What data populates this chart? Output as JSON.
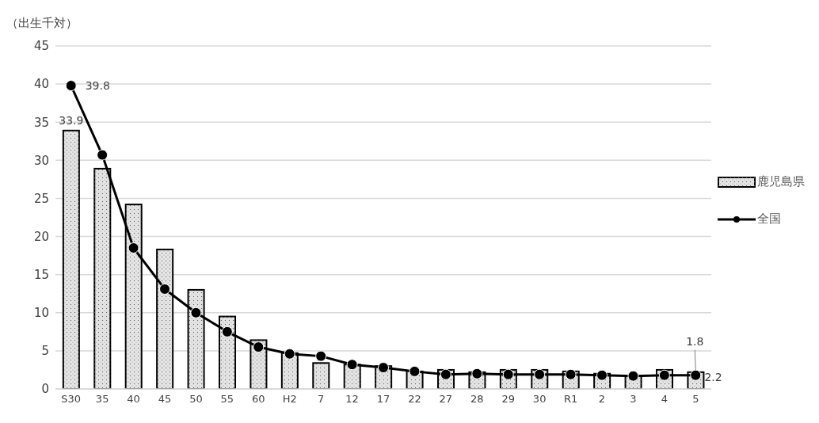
{
  "chart_data": {
    "type": "bar",
    "ylabel": "（出生千対）",
    "categories": [
      "S30",
      "35",
      "40",
      "45",
      "50",
      "55",
      "60",
      "H2",
      "7",
      "12",
      "17",
      "22",
      "27",
      "28",
      "29",
      "30",
      "R1",
      "2",
      "3",
      "4",
      "5"
    ],
    "series": [
      {
        "name": "鹿児島県",
        "color": "#e6e6e6",
        "values": [
          33.9,
          28.9,
          24.2,
          18.3,
          13.0,
          9.5,
          6.4,
          4.7,
          3.4,
          3.2,
          3.0,
          2.3,
          2.5,
          2.2,
          2.5,
          2.5,
          2.3,
          2.0,
          1.7,
          2.5,
          2.2
        ],
        "value_labels": [
          "33.9",
          null,
          null,
          null,
          null,
          null,
          null,
          null,
          null,
          null,
          null,
          null,
          null,
          null,
          null,
          null,
          null,
          null,
          null,
          null,
          "2.2"
        ]
      },
      {
        "name": "全国",
        "type": "line",
        "color": "#000000",
        "marker": "circle",
        "values": [
          39.8,
          30.7,
          18.5,
          13.1,
          10.0,
          7.5,
          5.5,
          4.6,
          4.3,
          3.2,
          2.8,
          2.3,
          1.9,
          2.0,
          1.9,
          1.9,
          1.9,
          1.8,
          1.7,
          1.8,
          1.8
        ],
        "value_labels": [
          "39.8",
          null,
          null,
          null,
          null,
          null,
          null,
          null,
          null,
          null,
          null,
          null,
          null,
          null,
          null,
          null,
          null,
          null,
          null,
          null,
          "1.8"
        ]
      }
    ],
    "ylim": [
      0,
      45
    ],
    "yticks": [
      0,
      5,
      10,
      15,
      20,
      25,
      30,
      35,
      40,
      45
    ],
    "grid": "y",
    "legend": "right"
  }
}
